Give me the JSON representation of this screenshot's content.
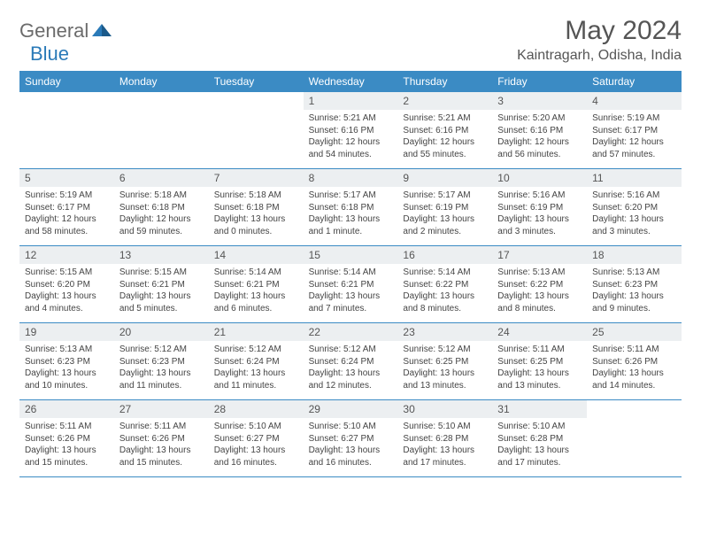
{
  "logo": {
    "text1": "General",
    "text2": "Blue"
  },
  "title": "May 2024",
  "location": "Kaintragarh, Odisha, India",
  "colors": {
    "header_bg": "#3b8bc4",
    "header_text": "#ffffff",
    "daynum_bg": "#eceff1",
    "border": "#3b8bc4",
    "logo_gray": "#6b6b6b",
    "logo_blue": "#2a7ab8"
  },
  "days_of_week": [
    "Sunday",
    "Monday",
    "Tuesday",
    "Wednesday",
    "Thursday",
    "Friday",
    "Saturday"
  ],
  "weeks": [
    [
      {
        "n": "",
        "sr": "",
        "ss": "",
        "dl": ""
      },
      {
        "n": "",
        "sr": "",
        "ss": "",
        "dl": ""
      },
      {
        "n": "",
        "sr": "",
        "ss": "",
        "dl": ""
      },
      {
        "n": "1",
        "sr": "Sunrise: 5:21 AM",
        "ss": "Sunset: 6:16 PM",
        "dl": "Daylight: 12 hours and 54 minutes."
      },
      {
        "n": "2",
        "sr": "Sunrise: 5:21 AM",
        "ss": "Sunset: 6:16 PM",
        "dl": "Daylight: 12 hours and 55 minutes."
      },
      {
        "n": "3",
        "sr": "Sunrise: 5:20 AM",
        "ss": "Sunset: 6:16 PM",
        "dl": "Daylight: 12 hours and 56 minutes."
      },
      {
        "n": "4",
        "sr": "Sunrise: 5:19 AM",
        "ss": "Sunset: 6:17 PM",
        "dl": "Daylight: 12 hours and 57 minutes."
      }
    ],
    [
      {
        "n": "5",
        "sr": "Sunrise: 5:19 AM",
        "ss": "Sunset: 6:17 PM",
        "dl": "Daylight: 12 hours and 58 minutes."
      },
      {
        "n": "6",
        "sr": "Sunrise: 5:18 AM",
        "ss": "Sunset: 6:18 PM",
        "dl": "Daylight: 12 hours and 59 minutes."
      },
      {
        "n": "7",
        "sr": "Sunrise: 5:18 AM",
        "ss": "Sunset: 6:18 PM",
        "dl": "Daylight: 13 hours and 0 minutes."
      },
      {
        "n": "8",
        "sr": "Sunrise: 5:17 AM",
        "ss": "Sunset: 6:18 PM",
        "dl": "Daylight: 13 hours and 1 minute."
      },
      {
        "n": "9",
        "sr": "Sunrise: 5:17 AM",
        "ss": "Sunset: 6:19 PM",
        "dl": "Daylight: 13 hours and 2 minutes."
      },
      {
        "n": "10",
        "sr": "Sunrise: 5:16 AM",
        "ss": "Sunset: 6:19 PM",
        "dl": "Daylight: 13 hours and 3 minutes."
      },
      {
        "n": "11",
        "sr": "Sunrise: 5:16 AM",
        "ss": "Sunset: 6:20 PM",
        "dl": "Daylight: 13 hours and 3 minutes."
      }
    ],
    [
      {
        "n": "12",
        "sr": "Sunrise: 5:15 AM",
        "ss": "Sunset: 6:20 PM",
        "dl": "Daylight: 13 hours and 4 minutes."
      },
      {
        "n": "13",
        "sr": "Sunrise: 5:15 AM",
        "ss": "Sunset: 6:21 PM",
        "dl": "Daylight: 13 hours and 5 minutes."
      },
      {
        "n": "14",
        "sr": "Sunrise: 5:14 AM",
        "ss": "Sunset: 6:21 PM",
        "dl": "Daylight: 13 hours and 6 minutes."
      },
      {
        "n": "15",
        "sr": "Sunrise: 5:14 AM",
        "ss": "Sunset: 6:21 PM",
        "dl": "Daylight: 13 hours and 7 minutes."
      },
      {
        "n": "16",
        "sr": "Sunrise: 5:14 AM",
        "ss": "Sunset: 6:22 PM",
        "dl": "Daylight: 13 hours and 8 minutes."
      },
      {
        "n": "17",
        "sr": "Sunrise: 5:13 AM",
        "ss": "Sunset: 6:22 PM",
        "dl": "Daylight: 13 hours and 8 minutes."
      },
      {
        "n": "18",
        "sr": "Sunrise: 5:13 AM",
        "ss": "Sunset: 6:23 PM",
        "dl": "Daylight: 13 hours and 9 minutes."
      }
    ],
    [
      {
        "n": "19",
        "sr": "Sunrise: 5:13 AM",
        "ss": "Sunset: 6:23 PM",
        "dl": "Daylight: 13 hours and 10 minutes."
      },
      {
        "n": "20",
        "sr": "Sunrise: 5:12 AM",
        "ss": "Sunset: 6:23 PM",
        "dl": "Daylight: 13 hours and 11 minutes."
      },
      {
        "n": "21",
        "sr": "Sunrise: 5:12 AM",
        "ss": "Sunset: 6:24 PM",
        "dl": "Daylight: 13 hours and 11 minutes."
      },
      {
        "n": "22",
        "sr": "Sunrise: 5:12 AM",
        "ss": "Sunset: 6:24 PM",
        "dl": "Daylight: 13 hours and 12 minutes."
      },
      {
        "n": "23",
        "sr": "Sunrise: 5:12 AM",
        "ss": "Sunset: 6:25 PM",
        "dl": "Daylight: 13 hours and 13 minutes."
      },
      {
        "n": "24",
        "sr": "Sunrise: 5:11 AM",
        "ss": "Sunset: 6:25 PM",
        "dl": "Daylight: 13 hours and 13 minutes."
      },
      {
        "n": "25",
        "sr": "Sunrise: 5:11 AM",
        "ss": "Sunset: 6:26 PM",
        "dl": "Daylight: 13 hours and 14 minutes."
      }
    ],
    [
      {
        "n": "26",
        "sr": "Sunrise: 5:11 AM",
        "ss": "Sunset: 6:26 PM",
        "dl": "Daylight: 13 hours and 15 minutes."
      },
      {
        "n": "27",
        "sr": "Sunrise: 5:11 AM",
        "ss": "Sunset: 6:26 PM",
        "dl": "Daylight: 13 hours and 15 minutes."
      },
      {
        "n": "28",
        "sr": "Sunrise: 5:10 AM",
        "ss": "Sunset: 6:27 PM",
        "dl": "Daylight: 13 hours and 16 minutes."
      },
      {
        "n": "29",
        "sr": "Sunrise: 5:10 AM",
        "ss": "Sunset: 6:27 PM",
        "dl": "Daylight: 13 hours and 16 minutes."
      },
      {
        "n": "30",
        "sr": "Sunrise: 5:10 AM",
        "ss": "Sunset: 6:28 PM",
        "dl": "Daylight: 13 hours and 17 minutes."
      },
      {
        "n": "31",
        "sr": "Sunrise: 5:10 AM",
        "ss": "Sunset: 6:28 PM",
        "dl": "Daylight: 13 hours and 17 minutes."
      },
      {
        "n": "",
        "sr": "",
        "ss": "",
        "dl": ""
      }
    ]
  ]
}
